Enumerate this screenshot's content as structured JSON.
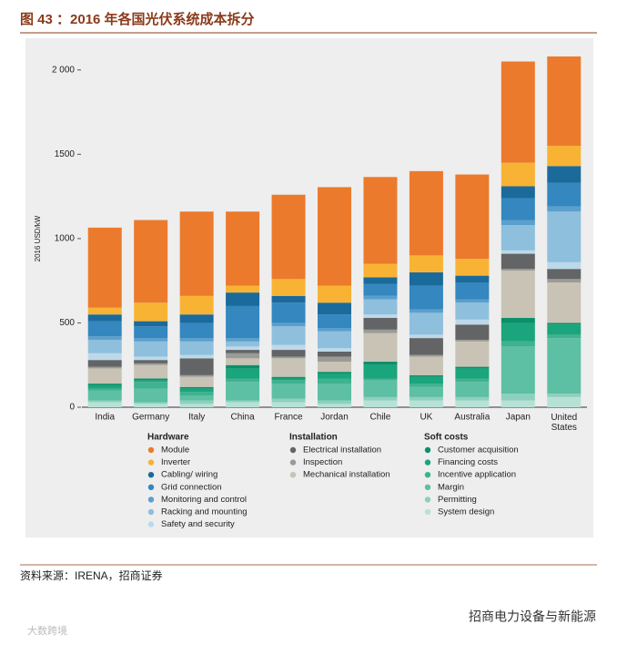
{
  "page": {
    "title": "图 43 ：2016 年各国光伏系统成本拆分",
    "source": "资料来源：IRENA，招商证券",
    "watermark": "招商电力设备与新能源",
    "corner_mark": "大数跨境"
  },
  "chart_data": {
    "type": "stacked_bar",
    "y_label": "2016 USD/kW",
    "categories": [
      "India",
      "Germany",
      "Italy",
      "China",
      "France",
      "Jordan",
      "Chile",
      "UK",
      "Australia",
      "Japan",
      "United States"
    ],
    "ylim": [
      0,
      2150
    ],
    "yticks": [
      0,
      500,
      1000,
      1500,
      {
        "value": 2000,
        "label": "2 000"
      }
    ],
    "series": [
      {
        "name": "Module",
        "group": "Hardware",
        "color": "#ec7a2c",
        "values": [
          475,
          490,
          500,
          440,
          500,
          585,
          515,
          500,
          500,
          600,
          530
        ]
      },
      {
        "name": "Inverter",
        "group": "Hardware",
        "color": "#f8b334",
        "values": [
          40,
          110,
          110,
          40,
          100,
          100,
          80,
          100,
          100,
          140,
          120
        ]
      },
      {
        "name": "Cabling/ wiring",
        "group": "Hardware",
        "color": "#1b6a9c",
        "values": [
          40,
          30,
          50,
          80,
          40,
          70,
          40,
          80,
          40,
          70,
          100
        ]
      },
      {
        "name": "Grid connection",
        "group": "Hardware",
        "color": "#3487bf",
        "values": [
          90,
          70,
          90,
          190,
          120,
          80,
          70,
          140,
          100,
          130,
          140
        ]
      },
      {
        "name": "Monitoring and control",
        "group": "Hardware",
        "color": "#5b9fcc",
        "values": [
          20,
          20,
          20,
          20,
          20,
          20,
          20,
          20,
          20,
          30,
          30
        ]
      },
      {
        "name": "Racking and mounting",
        "group": "Hardware",
        "color": "#8ebfdd",
        "values": [
          80,
          90,
          80,
          30,
          110,
          100,
          90,
          130,
          100,
          150,
          300
        ]
      },
      {
        "name": "Safety and security",
        "group": "Hardware",
        "color": "#bcd9ea",
        "values": [
          40,
          20,
          20,
          20,
          30,
          20,
          20,
          20,
          30,
          20,
          40
        ]
      },
      {
        "name": "Electrical installation",
        "group": "Installation",
        "color": "#636466",
        "values": [
          40,
          20,
          100,
          20,
          40,
          30,
          70,
          100,
          90,
          90,
          60
        ]
      },
      {
        "name": "Inspection",
        "group": "Installation",
        "color": "#9b9b96",
        "values": [
          10,
          10,
          10,
          30,
          10,
          30,
          20,
          10,
          10,
          10,
          20
        ]
      },
      {
        "name": "Mechanical installation",
        "group": "Installation",
        "color": "#c8c3b4",
        "values": [
          90,
          80,
          60,
          40,
          110,
          60,
          170,
          110,
          150,
          280,
          240
        ]
      },
      {
        "name": "Customer acquisition",
        "group": "Soft costs",
        "color": "#0b8f6b",
        "values": [
          10,
          10,
          10,
          20,
          10,
          10,
          20,
          10,
          10,
          30,
          10
        ]
      },
      {
        "name": "Financing costs",
        "group": "Soft costs",
        "color": "#1aa57c",
        "values": [
          20,
          10,
          20,
          60,
          10,
          30,
          80,
          40,
          60,
          110,
          60
        ]
      },
      {
        "name": "Incentive application",
        "group": "Soft costs",
        "color": "#3fb28f",
        "values": [
          10,
          40,
          20,
          20,
          20,
          30,
          10,
          20,
          20,
          30,
          20
        ]
      },
      {
        "name": "Margin",
        "group": "Soft costs",
        "color": "#5dbfa4",
        "values": [
          60,
          80,
          30,
          110,
          90,
          100,
          100,
          60,
          90,
          280,
          330
        ]
      },
      {
        "name": "Permitting",
        "group": "Soft costs",
        "color": "#8ed0be",
        "values": [
          10,
          10,
          20,
          10,
          20,
          20,
          20,
          20,
          20,
          40,
          20
        ]
      },
      {
        "name": "System design",
        "group": "Soft costs",
        "color": "#b8e1d6",
        "values": [
          30,
          20,
          20,
          30,
          30,
          20,
          40,
          40,
          40,
          40,
          60
        ]
      }
    ]
  }
}
